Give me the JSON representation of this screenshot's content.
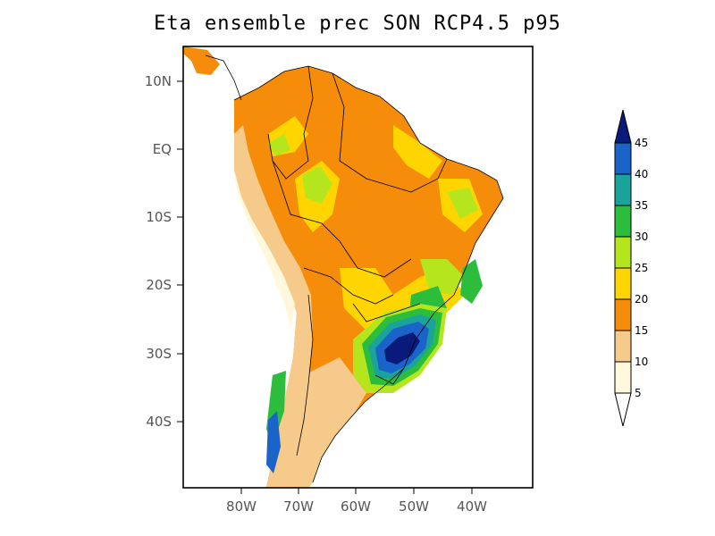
{
  "title": "Eta ensemble prec SON RCP4.5 p95",
  "lat_ticks": [
    "10N",
    "EQ",
    "10S",
    "20S",
    "30S",
    "40S"
  ],
  "lon_ticks": [
    "80W",
    "70W",
    "60W",
    "50W",
    "40W"
  ],
  "colorbar": {
    "labels": [
      "5",
      "10",
      "15",
      "20",
      "25",
      "30",
      "35",
      "40",
      "45"
    ],
    "colors": [
      "#fff8dc",
      "#f6ca8a",
      "#f58c0a",
      "#ffd500",
      "#b5e61d",
      "#2cbd3c",
      "#1aa39b",
      "#1a63c9",
      "#0a1a7a"
    ],
    "under_color": "#ffffff",
    "over_color": "#0a1a7a"
  },
  "map": {
    "region": "South America",
    "colors": {
      "ocean": "#ffffff",
      "very_low": "#fff8dc",
      "low": "#f6ca8a",
      "mid": "#f58c0a",
      "mid_high": "#ffd500",
      "high": "#b5e61d",
      "very_high": "#2cbd3c",
      "extreme": "#1a63c9",
      "max": "#0a1a7a"
    }
  }
}
